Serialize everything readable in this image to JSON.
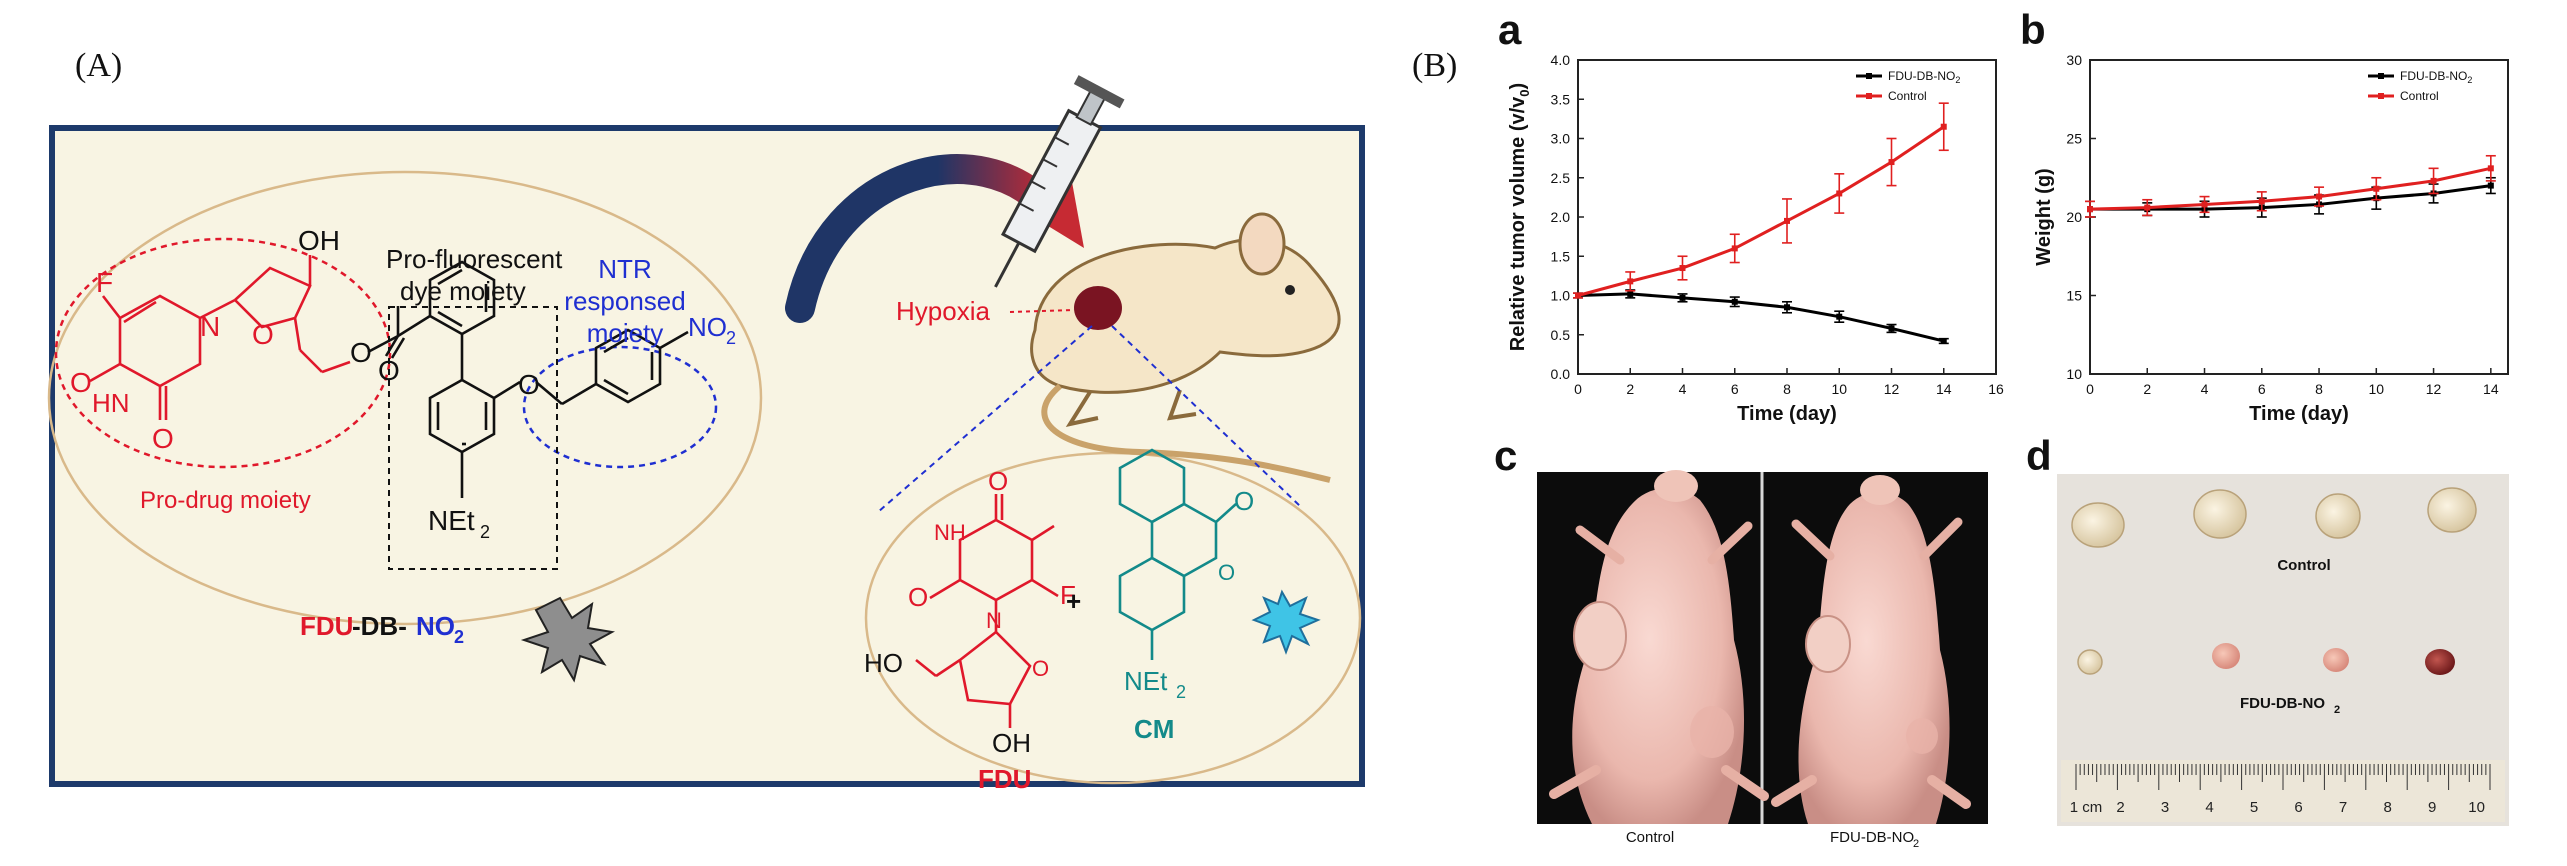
{
  "panel_A": {
    "label": "(A)",
    "scheme": {
      "pro_fluorescent_label_line1": "Pro-fluorescent",
      "pro_fluorescent_label_line2": "dye moiety",
      "ntr_label_line1": "NTR",
      "ntr_label_line2": "responsed",
      "ntr_label_line3": "moiety",
      "prodrug_label": "Pro-drug moiety",
      "hypoxia_label": "Hypoxia",
      "compound_name_part1": "FDU",
      "compound_name_part2": "-DB-",
      "compound_name_part3": "NO",
      "compound_name_sub": "2",
      "product_fdu": "FDU",
      "product_cm": "CM",
      "plus": "+",
      "atom_F": "F",
      "atom_OH": "OH",
      "atom_O": "O",
      "atom_HN": "HN",
      "atom_N": "N",
      "atom_NO2": "NO",
      "atom_NO2_sub": "2",
      "atom_NEt2": "NEt",
      "atom_NEt2_sub": "2",
      "atom_HO": "HO",
      "atom_NH": "NH"
    },
    "colors": {
      "frame": "#1d3a6b",
      "background": "#f8f4e3",
      "oval": "#d9b98a",
      "drug_red": "#e0182b",
      "ntr_blue": "#1f2fd1",
      "cm_teal": "#138a8a",
      "arrow_red": "#c62a33",
      "arrow_navy": "#1f3566"
    }
  },
  "panel_B": {
    "label": "(B)",
    "chart_a": {
      "letter": "a"
    },
    "chart_b": {
      "letter": "b"
    },
    "photo_c": {
      "letter": "c",
      "left_caption": "Control",
      "right_caption_main": "FDU-DB-NO",
      "right_caption_sub": "2"
    },
    "photo_d": {
      "letter": "d",
      "row1_label": "Control",
      "row2_label_main": "FDU-DB-NO",
      "row2_label_sub": "2",
      "ruler_labels": [
        "1 cm",
        "2",
        "3",
        "4",
        "5",
        "6",
        "7",
        "8",
        "9",
        "10"
      ]
    }
  },
  "chart_data": [
    {
      "id": "a",
      "type": "line",
      "xlabel": "Time (day)",
      "ylabel": "Relative tumor volume (v/v",
      "ylabel_sub": "0",
      "ylabel_tail": ")",
      "xlim": [
        0,
        16
      ],
      "ylim": [
        0,
        4.0
      ],
      "xticks": [
        0,
        2,
        4,
        6,
        8,
        10,
        12,
        14,
        16
      ],
      "yticks": [
        0.0,
        0.5,
        1.0,
        1.5,
        2.0,
        2.5,
        3.0,
        3.5,
        4.0
      ],
      "ytick_labels": [
        "0.0",
        "0.5",
        "1.0",
        "1.5",
        "2.0",
        "2.5",
        "3.0",
        "3.5",
        "4.0"
      ],
      "grid": false,
      "legend_position": "top-right",
      "series": [
        {
          "name": "FDU-DB-NO",
          "name_sub": "2",
          "color": "#000000",
          "x": [
            0,
            2,
            4,
            6,
            8,
            10,
            12,
            14
          ],
          "y": [
            1.0,
            1.02,
            0.97,
            0.92,
            0.85,
            0.73,
            0.58,
            0.42
          ],
          "err": [
            0.03,
            0.05,
            0.05,
            0.06,
            0.07,
            0.07,
            0.05,
            0.03
          ]
        },
        {
          "name": "Control",
          "name_sub": "",
          "color": "#e02020",
          "x": [
            0,
            2,
            4,
            6,
            8,
            10,
            12,
            14
          ],
          "y": [
            1.0,
            1.18,
            1.35,
            1.6,
            1.95,
            2.3,
            2.7,
            3.15
          ],
          "err": [
            0.03,
            0.12,
            0.15,
            0.18,
            0.28,
            0.25,
            0.3,
            0.3
          ]
        }
      ]
    },
    {
      "id": "b",
      "type": "line",
      "xlabel": "Time (day)",
      "ylabel": "Weight (g)",
      "xlim": [
        0,
        14.6
      ],
      "ylim": [
        10,
        30
      ],
      "xticks": [
        0,
        2,
        4,
        6,
        8,
        10,
        12,
        14
      ],
      "yticks": [
        10,
        15,
        20,
        25,
        30
      ],
      "ytick_labels": [
        "10",
        "15",
        "20",
        "25",
        "30"
      ],
      "grid": false,
      "legend_position": "top-right",
      "series": [
        {
          "name": "FDU-DB-NO",
          "name_sub": "2",
          "color": "#000000",
          "x": [
            0,
            2,
            4,
            6,
            8,
            10,
            12,
            14
          ],
          "y": [
            20.5,
            20.5,
            20.5,
            20.6,
            20.8,
            21.2,
            21.5,
            22.0
          ],
          "err": [
            0.5,
            0.4,
            0.5,
            0.6,
            0.6,
            0.7,
            0.6,
            0.5
          ]
        },
        {
          "name": "Control",
          "name_sub": "",
          "color": "#e02020",
          "x": [
            0,
            2,
            4,
            6,
            8,
            10,
            12,
            14
          ],
          "y": [
            20.5,
            20.6,
            20.8,
            21.0,
            21.3,
            21.8,
            22.3,
            23.1
          ],
          "err": [
            0.5,
            0.5,
            0.5,
            0.6,
            0.6,
            0.7,
            0.8,
            0.8
          ]
        }
      ]
    }
  ]
}
